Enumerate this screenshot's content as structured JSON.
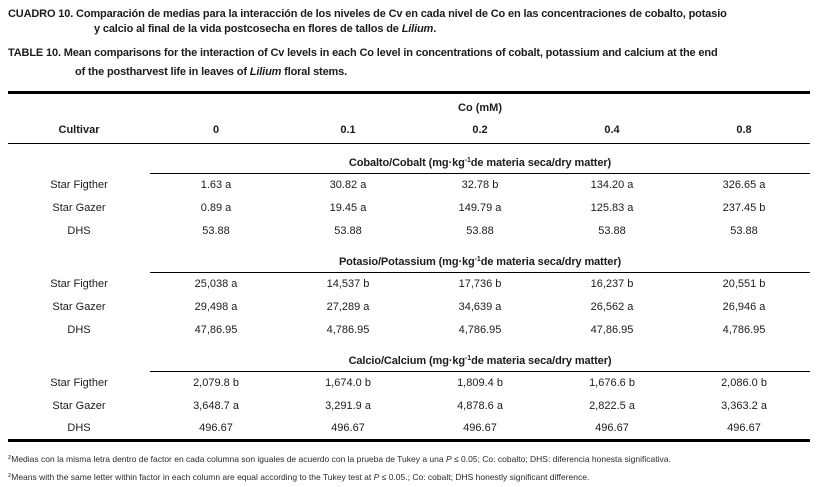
{
  "titles": {
    "es": {
      "line1": "CUADRO 10. Comparación de medias para la interacción de los niveles de Cv en cada nivel de Co en las concentraciones de cobalto, potasio",
      "line2_pre": "y calcio al final de la vida postcosecha  en flores de tallos de ",
      "line2_italic": "Lilium",
      "line2_post": "."
    },
    "en": {
      "line1": "TABLE 10. Mean comparisons for the interaction of Cv levels in each Co level in concentrations of cobalt, potassium and calcium at the end",
      "line2_pre": "of the postharvest life in leaves of ",
      "line2_italic": "Lilium",
      "line2_post": " floral stems."
    }
  },
  "table": {
    "co_group_header": "Co (mM)",
    "cultivar_header": "Cultivar",
    "columns": [
      "0",
      "0.1",
      "0.2",
      "0.4",
      "0.8"
    ],
    "sections": [
      {
        "name": "cobalt",
        "title_pre": "Cobalto/Cobalt (mg·kg",
        "title_sup": "-1",
        "title_post": "de materia seca/dry matter)",
        "rows": [
          {
            "cultivar": "Star Figther",
            "values": [
              "1.63 a",
              "30.82 a",
              "32.78 b",
              "134.20 a",
              "326.65 a"
            ]
          },
          {
            "cultivar": "Star Gazer",
            "values": [
              "0.89 a",
              "19.45 a",
              "149.79 a",
              "125.83 a",
              "237.45 b"
            ]
          },
          {
            "cultivar": "DHS",
            "values": [
              "53.88",
              "53.88",
              "53.88",
              "53.88",
              "53.88"
            ]
          }
        ]
      },
      {
        "name": "potassium",
        "title_pre": "Potasio/Potassium (mg·kg",
        "title_sup": "-1",
        "title_post": "de materia seca/dry matter)",
        "rows": [
          {
            "cultivar": "Star Figther",
            "values": [
              "25,038 a",
              "14,537 b",
              "17,736 b",
              "16,237 b",
              "20,551 b"
            ]
          },
          {
            "cultivar": "Star Gazer",
            "values": [
              "29,498 a",
              "27,289 a",
              "34,639 a",
              "26,562 a",
              "26,946 a"
            ]
          },
          {
            "cultivar": "DHS",
            "values": [
              "47,86.95",
              "4,786.95",
              "4,786.95",
              "47,86.95",
              "4,786.95"
            ]
          }
        ]
      },
      {
        "name": "calcium",
        "title_pre": "Calcio/Calcium (mg·kg",
        "title_sup": "-1",
        "title_post": "de materia seca/dry matter)",
        "rows": [
          {
            "cultivar": "Star Figther",
            "values": [
              "2,079.8 b",
              "1,674.0 b",
              "1,809.4 b",
              "1,676.6 b",
              "2,086.0 b"
            ]
          },
          {
            "cultivar": "Star Gazer",
            "values": [
              "3,648.7 a",
              "3,291.9 a",
              "4,878.6 a",
              "2,822.5 a",
              "3,363.2 a"
            ]
          },
          {
            "cultivar": "DHS",
            "values": [
              "496.67",
              "496.67",
              "496.67",
              "496.67",
              "496.67"
            ]
          }
        ]
      }
    ]
  },
  "footnotes": {
    "es": {
      "sup": "z",
      "pre": "Medias con la misma letra dentro de factor en cada columna son iguales de acuerdo con la prueba de Tukey a una ",
      "italic": "P",
      "post": " ≤ 0.05; Co: cobalto; DHS: diferencia honesta significativa."
    },
    "en": {
      "sup": "z",
      "pre": "Means with the same letter within factor in each column are equal according to the Tukey test at ",
      "italic": "P",
      "post": " ≤ 0.05.; Co: cobalt; DHS honestly significant difference."
    }
  },
  "colors": {
    "text": "#1c1c1c",
    "rule": "#000000",
    "background": "#ffffff"
  }
}
